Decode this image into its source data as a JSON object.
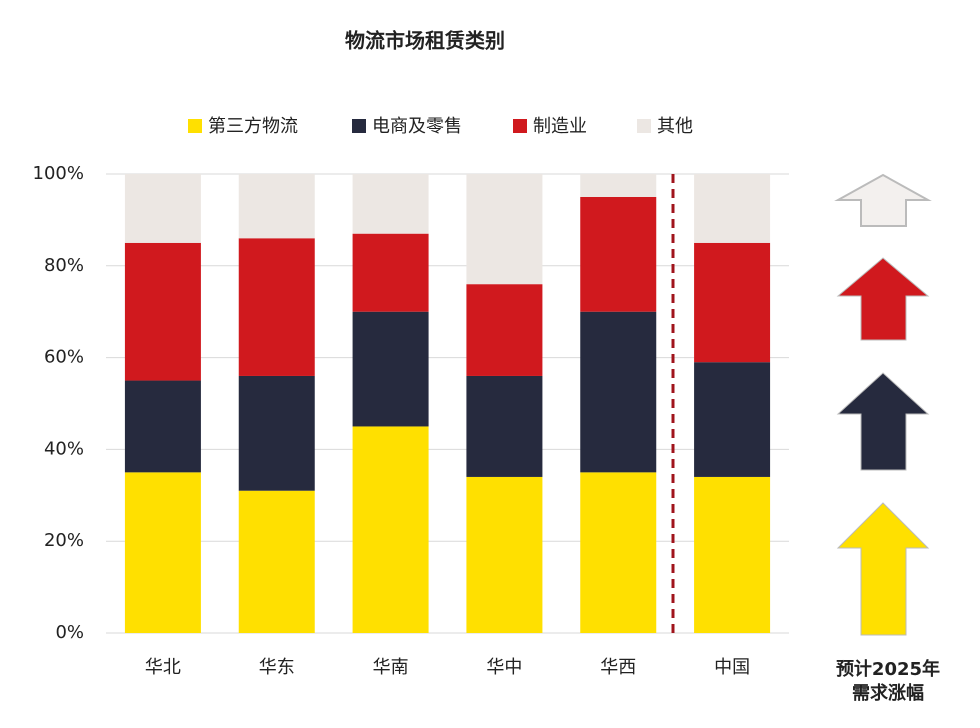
{
  "chart_data": {
    "type": "stacked_bar",
    "title": "物流市场租赁类别",
    "categories": [
      "华北",
      "华东",
      "华南",
      "华中",
      "华西",
      "中国"
    ],
    "series": [
      {
        "name": "第三方物流",
        "color": "#FFE000",
        "values": [
          35,
          31,
          45,
          34,
          35,
          34
        ]
      },
      {
        "name": "电商及零售",
        "color": "#262A3E",
        "values": [
          20,
          25,
          25,
          22,
          35,
          25
        ]
      },
      {
        "name": "制造业",
        "color": "#D0191E",
        "values": [
          30,
          30,
          17,
          20,
          25,
          26
        ]
      },
      {
        "name": "其他",
        "color": "#ECE7E3",
        "values": [
          15,
          14,
          13,
          24,
          5,
          15
        ]
      }
    ],
    "ylim": [
      0,
      100
    ],
    "yticks": [
      {
        "value": 0,
        "label": "0%"
      },
      {
        "value": 20,
        "label": "20%"
      },
      {
        "value": 40,
        "label": "40%"
      },
      {
        "value": 60,
        "label": "60%"
      },
      {
        "value": 80,
        "label": "80%"
      },
      {
        "value": 100,
        "label": "100%"
      }
    ],
    "grid": true,
    "annotation": [
      "预计2025年",
      "需求涨幅"
    ]
  }
}
